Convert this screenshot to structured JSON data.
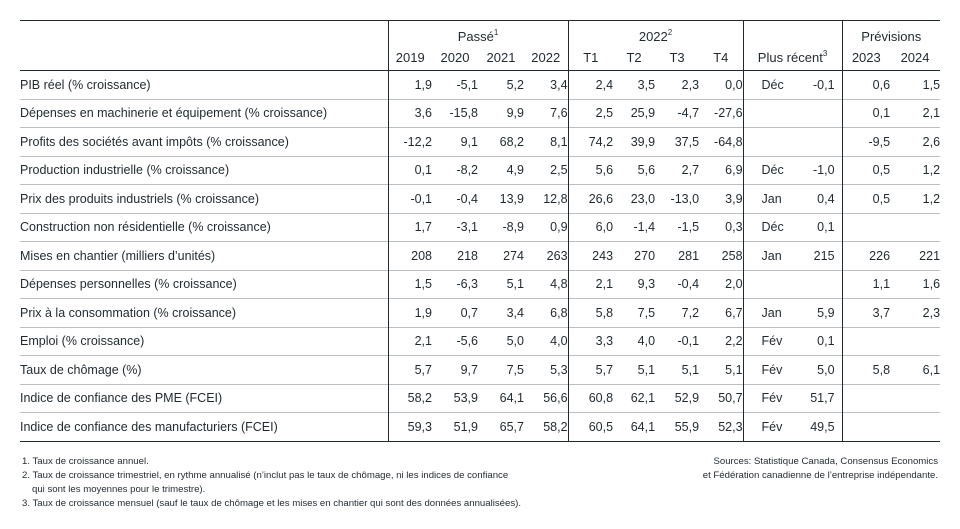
{
  "header": {
    "group_past": "Passé",
    "group_past_sup": "1",
    "group_quarters": "2022",
    "group_quarters_sup": "2",
    "group_forecast": "Prévisions",
    "recent_label": "Plus récent",
    "recent_sup": "3",
    "columns": [
      "2019",
      "2020",
      "2021",
      "2022",
      "T1",
      "T2",
      "T3",
      "T4",
      "2023",
      "2024"
    ]
  },
  "rows": [
    {
      "label": "PIB réel (% croissance)",
      "values": [
        "1,9",
        "-5,1",
        "5,2",
        "3,4",
        "2,4",
        "3,5",
        "2,3",
        "0,0"
      ],
      "recent_month": "Déc",
      "recent_value": "-0,1",
      "forecast": [
        "0,6",
        "1,5"
      ]
    },
    {
      "label": "Dépenses en machinerie et équipement (% croissance)",
      "values": [
        "3,6",
        "-15,8",
        "9,9",
        "7,6",
        "2,5",
        "25,9",
        "-4,7",
        "-27,6"
      ],
      "recent_month": "",
      "recent_value": "",
      "forecast": [
        "0,1",
        "2,1"
      ]
    },
    {
      "label": "Profits des sociétés avant impôts (% croissance)",
      "values": [
        "-12,2",
        "9,1",
        "68,2",
        "8,1",
        "74,2",
        "39,9",
        "37,5",
        "-64,8"
      ],
      "recent_month": "",
      "recent_value": "",
      "forecast": [
        "-9,5",
        "2,6"
      ]
    },
    {
      "label": "Production industrielle (% croissance)",
      "values": [
        "0,1",
        "-8,2",
        "4,9",
        "2,5",
        "5,6",
        "5,6",
        "2,7",
        "6,9"
      ],
      "recent_month": "Déc",
      "recent_value": "-1,0",
      "forecast": [
        "0,5",
        "1,2"
      ]
    },
    {
      "label": "Prix des produits industriels (% croissance)",
      "values": [
        "-0,1",
        "-0,4",
        "13,9",
        "12,8",
        "26,6",
        "23,0",
        "-13,0",
        "3,9"
      ],
      "recent_month": "Jan",
      "recent_value": "0,4",
      "forecast": [
        "0,5",
        "1,2"
      ]
    },
    {
      "label": "Construction non résidentielle (% croissance)",
      "values": [
        "1,7",
        "-3,1",
        "-8,9",
        "0,9",
        "6,0",
        "-1,4",
        "-1,5",
        "0,3"
      ],
      "recent_month": "Déc",
      "recent_value": "0,1",
      "forecast": [
        "",
        ""
      ]
    },
    {
      "label": "Mises en chantier (milliers d’unités)",
      "values": [
        "208",
        "218",
        "274",
        "263",
        "243",
        "270",
        "281",
        "258"
      ],
      "recent_month": "Jan",
      "recent_value": "215",
      "forecast": [
        "226",
        "221"
      ]
    },
    {
      "label": "Dépenses personnelles (% croissance)",
      "values": [
        "1,5",
        "-6,3",
        "5,1",
        "4,8",
        "2,1",
        "9,3",
        "-0,4",
        "2,0"
      ],
      "recent_month": "",
      "recent_value": "",
      "forecast": [
        "1,1",
        "1,6"
      ]
    },
    {
      "label": "Prix à la consommation (% croissance)",
      "values": [
        "1,9",
        "0,7",
        "3,4",
        "6,8",
        "5,8",
        "7,5",
        "7,2",
        "6,7"
      ],
      "recent_month": "Jan",
      "recent_value": "5,9",
      "forecast": [
        "3,7",
        "2,3"
      ]
    },
    {
      "label": "Emploi (% croissance)",
      "values": [
        "2,1",
        "-5,6",
        "5,0",
        "4,0",
        "3,3",
        "4,0",
        "-0,1",
        "2,2"
      ],
      "recent_month": "Fév",
      "recent_value": "0,1",
      "forecast": [
        "",
        ""
      ]
    },
    {
      "label": "Taux de chômage (%)",
      "values": [
        "5,7",
        "9,7",
        "7,5",
        "5,3",
        "5,7",
        "5,1",
        "5,1",
        "5,1"
      ],
      "recent_month": "Fév",
      "recent_value": "5,0",
      "forecast": [
        "5,8",
        "6,1"
      ]
    },
    {
      "label": "Indice de confiance des PME (FCEI)",
      "values": [
        "58,2",
        "53,9",
        "64,1",
        "56,6",
        "60,8",
        "62,1",
        "52,9",
        "50,7"
      ],
      "recent_month": "Fév",
      "recent_value": "51,7",
      "forecast": [
        "",
        ""
      ]
    },
    {
      "label": "Indice de confiance des manufacturiers (FCEI)",
      "values": [
        "59,3",
        "51,9",
        "65,7",
        "58,2",
        "60,5",
        "64,1",
        "55,9",
        "52,3"
      ],
      "recent_month": "Fév",
      "recent_value": "49,5",
      "forecast": [
        "",
        ""
      ]
    }
  ],
  "footnotes": [
    "1. Taux de croissance annuel.",
    "2. Taux de croissance trimestriel, en rythme annualisé (n’inclut pas le taux de chômage, ni les indices de confiance",
    "qui sont les moyennes pour le trimestre).",
    "3. Taux de croissance mensuel (sauf le taux de chômage et les mises en chantier qui sont des données annualisées)."
  ],
  "sources": [
    "Sources: Statistique Canada, Consensus Economics",
    "et Fédération canadienne de l’entreprise indépendante."
  ]
}
